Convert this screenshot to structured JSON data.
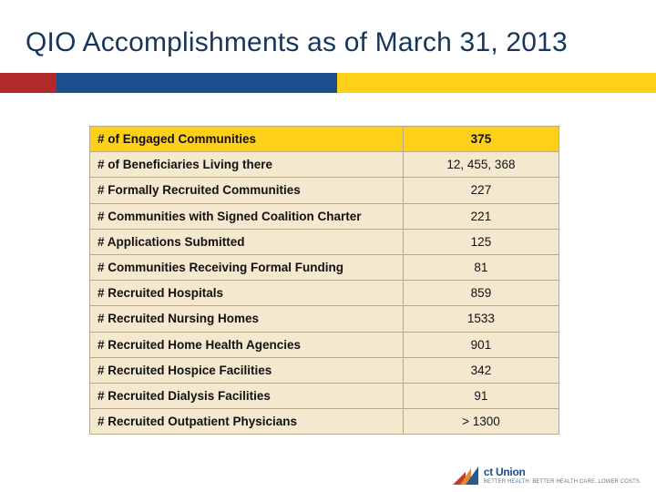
{
  "title": "QIO Accomplishments as of March 31, 2013",
  "bar_colors": {
    "red": "#b02a2a",
    "blue": "#1c4e8c",
    "yellow": "#ffd01a"
  },
  "table": {
    "header_bg": "#ffd01a",
    "row_bg": "#f4e8ce",
    "border_color": "#b8aa8a",
    "label_fontweight": 700,
    "value_fontweight_header": 700,
    "value_fontweight_body": 400,
    "font_size_pt": 10,
    "columns": [
      "label",
      "value"
    ],
    "rows": [
      {
        "label": "# of Engaged Communities",
        "value": "375",
        "header": true
      },
      {
        "label": "# of Beneficiaries Living there",
        "value": "12, 455, 368"
      },
      {
        "label": "# Formally Recruited Communities",
        "value": "227"
      },
      {
        "label": "# Communities with Signed Coalition Charter",
        "value": "221"
      },
      {
        "label": "# Applications Submitted",
        "value": "125"
      },
      {
        "label": "# Communities Receiving Formal Funding",
        "value": "81"
      },
      {
        "label": "# Recruited Hospitals",
        "value": "859"
      },
      {
        "label": "# Recruited Nursing Homes",
        "value": "1533"
      },
      {
        "label": "# Recruited  Home Health Agencies",
        "value": "901"
      },
      {
        "label": "# Recruited Hospice Facilities",
        "value": "342"
      },
      {
        "label": "# Recruited Dialysis Facilities",
        "value": "91"
      },
      {
        "label": "# Recruited  Outpatient Physicians",
        "value": "> 1300"
      }
    ]
  },
  "footer": {
    "brand": "ct Union",
    "tagline": "BETTER HEALTH. BETTER HEALTH CARE. LOWER COSTS"
  }
}
